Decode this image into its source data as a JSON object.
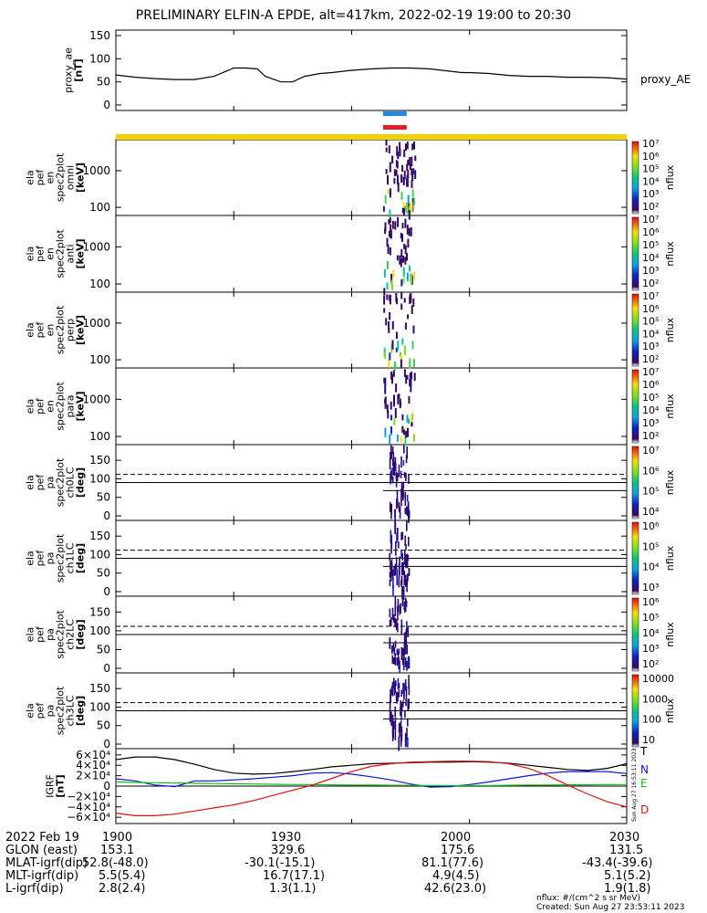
{
  "title": "PRELIMINARY ELFIN-A EPDE, alt=417km, 2022-02-19 19:00 to 20:30",
  "colors": {
    "ae_line": "#000000",
    "bar_blue": "#1e88e5",
    "bar_red": "#e02020",
    "bar_yellow": "#f2d400",
    "B_T": "#000000",
    "B_N": "#1010e0",
    "B_E": "#10c010",
    "B_D": "#e01010"
  },
  "colorbar_labels": {
    "spec_ticks": [
      "10⁷",
      "10⁶",
      "10⁵",
      "10⁴",
      "10³",
      "10²"
    ],
    "pa_ticks_a": [
      "10⁷",
      "10⁶",
      "10⁵",
      "10⁴"
    ],
    "pa_ticks_b": [
      "10⁶",
      "10⁵",
      "10⁴",
      "10³"
    ],
    "pa_ticks_c": [
      "10⁶",
      "10⁵",
      "10⁴",
      "10³",
      "10²"
    ],
    "pa_ticks_d": [
      "10000",
      "1000",
      "100",
      "10"
    ],
    "unit": "nflux"
  },
  "timestamp_vertical": "Sun Aug 27 16:53:11 2023",
  "chart_data": [
    {
      "type": "line",
      "panel": "proxy_ae",
      "ylabel": "proxy_ae\n[nT]",
      "ylim": [
        0,
        150
      ],
      "yticks": [
        "150",
        "100",
        "50",
        "0"
      ],
      "legend": [
        "proxy_AE"
      ],
      "x_minutes": [
        0,
        5,
        10,
        15,
        20,
        25,
        30,
        33,
        36,
        38,
        42,
        45,
        48,
        52,
        55,
        60,
        65,
        70,
        75,
        80,
        85,
        88,
        90,
        95,
        100,
        105,
        110,
        115,
        120,
        125,
        130
      ],
      "values": [
        65,
        60,
        57,
        55,
        55,
        62,
        80,
        80,
        78,
        62,
        50,
        50,
        62,
        68,
        70,
        75,
        78,
        80,
        80,
        78,
        73,
        70,
        70,
        68,
        64,
        62,
        62,
        60,
        60,
        59,
        56
      ]
    },
    {
      "type": "bar",
      "panel": "orbit_indicators",
      "series": [
        {
          "color": "blue",
          "x_start_min": 68,
          "x_end_min": 74
        },
        {
          "color": "red",
          "x_start_min": 68,
          "x_end_min": 74
        },
        {
          "color": "yellow",
          "x_start_min": 0,
          "x_end_min": 130
        }
      ]
    },
    {
      "type": "heatmap",
      "panel": "spectra",
      "panels": [
        {
          "ylabel": "ela\npef\nen\nspec2plot\nomni\n[keV]",
          "yticks": [
            "1000",
            "100"
          ],
          "yscale": "log",
          "ylim": [
            60,
            7000
          ]
        },
        {
          "ylabel": "ela\npef\nen\nspec2plot\nanti\n[keV]",
          "yticks": [
            "1000",
            "100"
          ],
          "yscale": "log",
          "ylim": [
            60,
            7000
          ]
        },
        {
          "ylabel": "ela\npef\nen\nspec2plot\nperp\n[keV]",
          "yticks": [
            "1000",
            "100"
          ],
          "yscale": "log",
          "ylim": [
            60,
            7000
          ]
        },
        {
          "ylabel": "ela\npef\nen\nspec2plot\npara\n[keV]",
          "yticks": [
            "1000",
            "100"
          ],
          "yscale": "log",
          "ylim": [
            60,
            7000
          ]
        }
      ],
      "colorbar": "nflux",
      "active_window_min": [
        68,
        76
      ]
    },
    {
      "type": "heatmap",
      "panel": "pitch_angle",
      "panels": [
        {
          "ylabel": "ela\npef\npa\nspec2plot\nch0LC\n[deg]",
          "yticks": [
            "150",
            "100",
            "50",
            "0"
          ]
        },
        {
          "ylabel": "ela\npef\npa\nspec2plot\nch1LC\n[deg]",
          "yticks": [
            "150",
            "100",
            "50",
            "0"
          ]
        },
        {
          "ylabel": "ela\npef\npa\nspec2plot\nch2LC\n[deg]",
          "yticks": [
            "150",
            "100",
            "50",
            "0"
          ]
        },
        {
          "ylabel": "ela\npef\npa\nspec2plot\nch3LC\n[deg]",
          "yticks": [
            "150",
            "100",
            "50",
            "0"
          ]
        }
      ],
      "ylim": [
        0,
        180
      ],
      "dashed_line_deg": 112,
      "solid_line_deg": 90,
      "solid_line2_deg": 68,
      "colorbar": "nflux",
      "active_window_min": [
        68,
        76
      ]
    },
    {
      "type": "line",
      "panel": "B_field",
      "ylabel": "IGRF\n[nT]",
      "ylim": [
        -65000,
        65000
      ],
      "yticks": [
        "6×10⁴",
        "4×10⁴",
        "2×10⁴",
        "0",
        "−2×10⁴",
        "−4×10⁴",
        "−6×10⁴"
      ],
      "x_minutes": [
        0,
        5,
        10,
        15,
        20,
        25,
        30,
        35,
        40,
        45,
        50,
        55,
        60,
        65,
        70,
        75,
        80,
        85,
        90,
        95,
        100,
        105,
        110,
        115,
        120,
        125,
        130
      ],
      "series": [
        {
          "name": "T",
          "values": [
            51000,
            56000,
            56000,
            51000,
            42000,
            32000,
            25000,
            23000,
            24000,
            28000,
            32000,
            37000,
            40000,
            43000,
            44000,
            45000,
            46000,
            46000,
            47000,
            46000,
            44000,
            40000,
            36000,
            32000,
            30000,
            34000,
            43000
          ]
        },
        {
          "name": "N",
          "values": [
            14000,
            10000,
            2000,
            -1000,
            10000,
            10000,
            12000,
            14000,
            17000,
            20000,
            25000,
            26000,
            23000,
            18000,
            12000,
            4000,
            -2000,
            -1000,
            3000,
            8000,
            14000,
            20000,
            25000,
            28000,
            28000,
            28000,
            24000
          ]
        },
        {
          "name": "E",
          "values": [
            8000,
            7000,
            6500,
            6000,
            5500,
            5000,
            4500,
            4000,
            3500,
            3000,
            3000,
            2500,
            2000,
            2000,
            1500,
            1500,
            1000,
            1000,
            1000,
            1000,
            1500,
            2000,
            2000,
            2500,
            2500,
            3000,
            3000
          ]
        },
        {
          "name": "D",
          "values": [
            -52000,
            -57000,
            -57000,
            -54000,
            -48000,
            -42000,
            -36000,
            -28000,
            -18000,
            -8000,
            2000,
            15000,
            28000,
            38000,
            43000,
            46000,
            47000,
            48000,
            48000,
            47000,
            43000,
            34000,
            20000,
            2000,
            -15000,
            -30000,
            -40000
          ]
        }
      ],
      "legend": [
        "T",
        "N",
        "E",
        "D"
      ]
    }
  ],
  "time_axis": {
    "row_label": "2022 Feb 19",
    "ticks": [
      "1900",
      "1930",
      "2000",
      "2030"
    ]
  },
  "ephemeris": [
    {
      "label": "GLON (east)",
      "values": [
        "153.1",
        "329.6",
        "175.6",
        "131.5"
      ]
    },
    {
      "label": "MLAT-igrf(dip)",
      "values": [
        "52.8(-48.0)",
        "-30.1(-15.1)",
        "81.1(77.6)",
        "-43.4(-39.6)"
      ]
    },
    {
      "label": "MLT-igrf(dip)",
      "values": [
        "5.5(5.4)",
        "16.7(17.1)",
        "4.9(4.5)",
        "5.1(5.2)"
      ]
    },
    {
      "label": "L-igrf(dip)",
      "values": [
        "2.8(2.4)",
        "1.3(1.1)",
        "42.6(23.0)",
        "1.9(1.8)"
      ]
    }
  ],
  "footer": {
    "units": "nflux: #/(cm^2 s sr MeV)",
    "created": "Created: Sun Aug 27 23:53:11 2023"
  }
}
